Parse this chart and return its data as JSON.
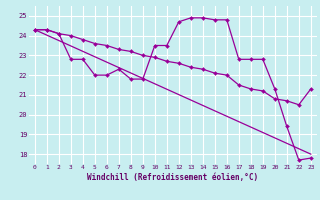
{
  "xlabel": "Windchill (Refroidissement éolien,°C)",
  "bg_color": "#c8eef0",
  "grid_color": "#ffffff",
  "line_color": "#990099",
  "ylim": [
    17.5,
    25.5
  ],
  "xlim": [
    -0.5,
    23.5
  ],
  "yticks": [
    18,
    19,
    20,
    21,
    22,
    23,
    24,
    25
  ],
  "xticks": [
    0,
    1,
    2,
    3,
    4,
    5,
    6,
    7,
    8,
    9,
    10,
    11,
    12,
    13,
    14,
    15,
    16,
    17,
    18,
    19,
    20,
    21,
    22,
    23
  ],
  "line1_x": [
    0,
    1,
    2,
    3,
    4,
    5,
    6,
    7,
    8,
    9,
    10,
    11,
    12,
    13,
    14,
    15,
    16,
    17,
    18,
    19,
    20,
    21,
    22,
    23
  ],
  "line1_y": [
    24.3,
    24.3,
    24.1,
    22.8,
    22.8,
    22.0,
    22.0,
    22.3,
    21.8,
    21.8,
    23.5,
    23.5,
    24.7,
    24.9,
    24.9,
    24.8,
    24.8,
    22.8,
    22.8,
    22.8,
    21.3,
    19.4,
    17.7,
    17.8
  ],
  "line2_x": [
    0,
    23
  ],
  "line2_y": [
    24.3,
    18.0
  ],
  "line3_x": [
    0,
    1,
    2,
    3,
    4,
    5,
    6,
    7,
    8,
    9,
    10,
    11,
    12,
    13,
    14,
    15,
    16,
    17,
    18,
    19,
    20,
    21,
    22,
    23
  ],
  "line3_y": [
    24.3,
    24.3,
    24.1,
    24.0,
    23.8,
    23.6,
    23.5,
    23.3,
    23.2,
    23.0,
    22.9,
    22.7,
    22.6,
    22.4,
    22.3,
    22.1,
    22.0,
    21.5,
    21.3,
    21.2,
    20.8,
    20.7,
    20.5,
    21.3
  ]
}
